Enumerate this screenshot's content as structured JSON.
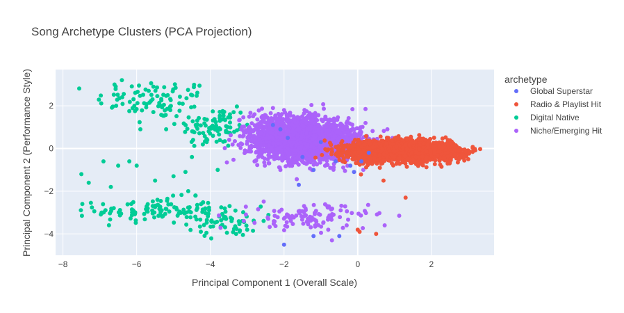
{
  "chart_data": {
    "type": "scatter",
    "title": "Song Archetype Clusters (PCA Projection)",
    "xlabel": "Principal Component 1 (Overall Scale)",
    "ylabel": "Principal Component 2 (Performance Style)",
    "xlim": [
      -8.2,
      3.7
    ],
    "ylim": [
      -5.0,
      3.7
    ],
    "x_ticks": [
      -8,
      -6,
      -4,
      -2,
      0,
      2
    ],
    "y_ticks": [
      -4,
      -2,
      0,
      2
    ],
    "x_tick_labels": [
      "−8",
      "−6",
      "−4",
      "−2",
      "0",
      "2"
    ],
    "y_tick_labels": [
      "−4",
      "−2",
      "0",
      "2"
    ],
    "grid": true,
    "legend": {
      "title": "archetype",
      "placement": "right",
      "entries": [
        "Global Superstar",
        "Radio & Playlist Hit",
        "Digital Native",
        "Niche/Emerging Hit"
      ]
    },
    "colors": {
      "Global Superstar": "#636efa",
      "Radio & Playlist Hit": "#EF553B",
      "Digital Native": "#00cc96",
      "Niche/Emerging Hit": "#ab63fa",
      "plot_bg": "#e5ecf6",
      "grid": "#ffffff"
    },
    "series": [
      {
        "name": "Global Superstar",
        "points": [
          [
            -2.3,
            1.1
          ],
          [
            -2.1,
            0.9
          ],
          [
            -1.9,
            0.5
          ],
          [
            -1.5,
            -0.4
          ],
          [
            -1.6,
            -1.7
          ],
          [
            -1.2,
            -1.0
          ],
          [
            -0.6,
            -0.6
          ],
          [
            -0.2,
            -0.8
          ],
          [
            0.1,
            -0.6
          ],
          [
            -2.0,
            -4.5
          ],
          [
            -1.2,
            -4.1
          ],
          [
            -0.5,
            -4.1
          ],
          [
            0.3,
            -0.2
          ],
          [
            -1.0,
            0.3
          ],
          [
            -0.1,
            -1.1
          ]
        ]
      },
      {
        "name": "Radio & Playlist Hit",
        "clusters": [
          {
            "center": [
              1.2,
              -0.1
            ],
            "spread": [
              0.65,
              0.22
            ],
            "count": 2500
          },
          {
            "center": [
              2.3,
              -0.2
            ],
            "spread": [
              0.3,
              0.15
            ],
            "count": 300
          },
          {
            "center": [
              0.2,
              -0.3
            ],
            "spread": [
              0.15,
              0.3
            ],
            "count": 80
          }
        ],
        "points": [
          [
            1.3,
            -2.3
          ],
          [
            0.5,
            -4.0
          ],
          [
            0.0,
            -3.8
          ],
          [
            0.05,
            -3.9
          ],
          [
            0.7,
            -1.5
          ],
          [
            0.3,
            -0.7
          ],
          [
            3.0,
            -0.5
          ],
          [
            2.9,
            -0.4
          ],
          [
            0.6,
            -0.9
          ]
        ]
      },
      {
        "name": "Digital Native",
        "clusters": [
          {
            "center": [
              -5.5,
              2.3
            ],
            "spread": [
              0.8,
              0.45
            ],
            "count": 90
          },
          {
            "center": [
              -3.9,
              1.0
            ],
            "spread": [
              0.5,
              0.5
            ],
            "count": 90
          },
          {
            "center": [
              -5.5,
              -2.9
            ],
            "spread": [
              0.8,
              0.3
            ],
            "count": 110
          },
          {
            "center": [
              -3.6,
              -3.4
            ],
            "spread": [
              0.5,
              0.35
            ],
            "count": 60
          }
        ],
        "points": [
          [
            -6.4,
            3.2
          ],
          [
            -6.6,
            3.0
          ],
          [
            -7.5,
            -1.2
          ],
          [
            -7.3,
            -1.6
          ],
          [
            -6.9,
            -0.6
          ],
          [
            -6.5,
            -0.8
          ],
          [
            -6.2,
            -0.6
          ],
          [
            -6.0,
            -0.8
          ],
          [
            -6.7,
            -1.8
          ],
          [
            -5.9,
            0.9
          ],
          [
            -5.2,
            0.9
          ],
          [
            -4.6,
            -2.0
          ],
          [
            -4.4,
            -2.2
          ],
          [
            -3.0,
            -3.8
          ],
          [
            -3.3,
            -4.0
          ],
          [
            -4.1,
            0.3
          ],
          [
            -4.5,
            -0.4
          ],
          [
            -3.8,
            -1.0
          ],
          [
            -5.0,
            -1.3
          ],
          [
            -5.5,
            -1.5
          ]
        ]
      },
      {
        "name": "Niche/Emerging Hit",
        "clusters": [
          {
            "center": [
              -1.3,
              0.3
            ],
            "spread": [
              0.7,
              0.45
            ],
            "count": 1700
          },
          {
            "center": [
              -2.4,
              0.8
            ],
            "spread": [
              0.45,
              0.45
            ],
            "count": 200
          },
          {
            "center": [
              -1.6,
              1.2
            ],
            "spread": [
              0.5,
              0.3
            ],
            "count": 150
          },
          {
            "center": [
              -1.3,
              -3.2
            ],
            "spread": [
              0.8,
              0.3
            ],
            "count": 110
          }
        ],
        "points": [
          [
            -2.3,
            1.9
          ],
          [
            -2.0,
            1.8
          ],
          [
            -0.8,
            -3.8
          ],
          [
            -0.7,
            -4.3
          ],
          [
            -0.3,
            -3.6
          ],
          [
            -2.8,
            -0.6
          ],
          [
            -2.1,
            -1.0
          ]
        ]
      }
    ]
  }
}
